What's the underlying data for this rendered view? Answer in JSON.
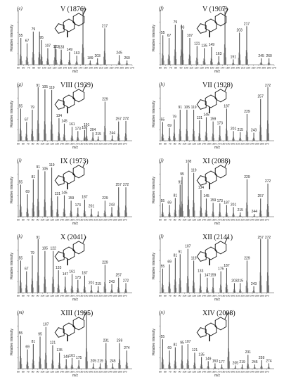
{
  "figure": {
    "axis_labels": {
      "x": "m/z",
      "y": "Relative intensity"
    },
    "x_ticks": [
      "50",
      "60",
      "70",
      "80",
      "90",
      "100",
      "110",
      "120",
      "130",
      "140",
      "150",
      "160",
      "170",
      "180",
      "190",
      "200",
      "210",
      "220",
      "230",
      "240",
      "250",
      "260",
      "270"
    ]
  },
  "chart_data": [
    {
      "panel": "(e)",
      "title": "V (1876)",
      "type": "bar",
      "xlabel": "m/z",
      "ylabel": "Relative intensity",
      "xlim": [
        50,
        270
      ],
      "ylim": [
        0,
        100
      ],
      "peaks": [
        [
          55,
          50
        ],
        [
          67,
          40
        ],
        [
          79,
          62
        ],
        [
          91,
          62
        ],
        [
          95,
          46
        ],
        [
          107,
          31
        ],
        [
          121,
          37
        ],
        [
          123,
          29
        ],
        [
          133,
          28
        ],
        [
          149,
          24
        ],
        [
          163,
          17
        ],
        [
          175,
          100
        ],
        [
          189,
          8
        ],
        [
          203,
          12
        ],
        [
          217,
          68
        ],
        [
          245,
          18
        ],
        [
          260,
          8
        ]
      ],
      "labels": [
        55,
        67,
        79,
        95,
        107,
        123,
        133,
        149,
        163,
        175,
        189,
        203,
        217,
        245,
        260
      ]
    },
    {
      "panel": "(f)",
      "title": "V (1907)",
      "type": "bar",
      "xlabel": "m/z",
      "ylabel": "Relative intensity",
      "xlim": [
        50,
        270
      ],
      "ylim": [
        0,
        100
      ],
      "peaks": [
        [
          55,
          55
        ],
        [
          67,
          50
        ],
        [
          79,
          75
        ],
        [
          91,
          75
        ],
        [
          93,
          65
        ],
        [
          107,
          50
        ],
        [
          121,
          35
        ],
        [
          135,
          31
        ],
        [
          149,
          33
        ],
        [
          163,
          16
        ],
        [
          175,
          100
        ],
        [
          191,
          10
        ],
        [
          203,
          60
        ],
        [
          217,
          72
        ],
        [
          245,
          12
        ],
        [
          260,
          12
        ]
      ],
      "labels": [
        55,
        67,
        79,
        93,
        107,
        121,
        135,
        149,
        163,
        175,
        191,
        203,
        217,
        245,
        260
      ]
    },
    {
      "panel": "(g)",
      "title": "VIII (1939)",
      "type": "bar",
      "xlabel": "m/z",
      "ylabel": "Relative intensity",
      "xlim": [
        50,
        285
      ],
      "ylim": [
        0,
        100
      ],
      "peaks": [
        [
          55,
          60
        ],
        [
          67,
          35
        ],
        [
          79,
          58
        ],
        [
          91,
          100
        ],
        [
          105,
          96
        ],
        [
          119,
          95
        ],
        [
          134,
          42
        ],
        [
          145,
          32
        ],
        [
          161,
          26
        ],
        [
          173,
          18
        ],
        [
          187,
          20
        ],
        [
          191,
          25
        ],
        [
          204,
          16
        ],
        [
          215,
          8
        ],
        [
          229,
          73
        ],
        [
          244,
          10
        ],
        [
          257,
          36
        ],
        [
          272,
          37
        ]
      ],
      "labels": [
        55,
        67,
        79,
        91,
        105,
        119,
        134,
        145,
        161,
        173,
        187,
        191,
        204,
        215,
        229,
        244,
        257,
        272
      ]
    },
    {
      "panel": "(h)",
      "title": "VII (1929)",
      "type": "bar",
      "xlabel": "m/z",
      "ylabel": "Relative intensity",
      "xlim": [
        50,
        285
      ],
      "ylim": [
        0,
        100
      ],
      "peaks": [
        [
          55,
          35
        ],
        [
          69,
          24
        ],
        [
          79,
          40
        ],
        [
          91,
          58
        ],
        [
          105,
          58
        ],
        [
          119,
          58
        ],
        [
          131,
          38
        ],
        [
          145,
          44
        ],
        [
          159,
          36
        ],
        [
          173,
          28
        ],
        [
          187,
          60
        ],
        [
          201,
          18
        ],
        [
          215,
          16
        ],
        [
          229,
          50
        ],
        [
          243,
          15
        ],
        [
          257,
          78
        ],
        [
          272,
          100
        ]
      ],
      "labels": [
        55,
        69,
        79,
        91,
        105,
        119,
        131,
        145,
        159,
        173,
        187,
        201,
        215,
        229,
        243,
        257,
        272
      ]
    },
    {
      "panel": "(i)",
      "title": "IX (1973)",
      "type": "bar",
      "xlabel": "m/z",
      "ylabel": "Relative intensity",
      "xlim": [
        50,
        285
      ],
      "ylim": [
        0,
        100
      ],
      "peaks": [
        [
          55,
          60
        ],
        [
          69,
          42
        ],
        [
          81,
          70
        ],
        [
          91,
          88
        ],
        [
          105,
          85
        ],
        [
          119,
          92
        ],
        [
          131,
          38
        ],
        [
          145,
          40
        ],
        [
          159,
          30
        ],
        [
          173,
          17
        ],
        [
          187,
          32
        ],
        [
          201,
          15
        ],
        [
          215,
          10
        ],
        [
          229,
          30
        ],
        [
          243,
          18
        ],
        [
          257,
          55
        ],
        [
          272,
          55
        ]
      ],
      "labels": [
        55,
        69,
        81,
        91,
        105,
        119,
        131,
        145,
        159,
        173,
        187,
        201,
        229,
        243,
        257,
        272
      ]
    },
    {
      "panel": "(j)",
      "title": "XI (2088)",
      "type": "bar",
      "xlabel": "m/z",
      "ylabel": "Relative intensity",
      "xlim": [
        50,
        285
      ],
      "ylim": [
        0,
        100
      ],
      "peaks": [
        [
          55,
          25
        ],
        [
          69,
          22
        ],
        [
          81,
          35
        ],
        [
          91,
          60
        ],
        [
          95,
          75
        ],
        [
          108,
          100
        ],
        [
          119,
          82
        ],
        [
          134,
          50
        ],
        [
          145,
          34
        ],
        [
          159,
          26
        ],
        [
          173,
          25
        ],
        [
          187,
          22
        ],
        [
          201,
          18
        ],
        [
          215,
          8
        ],
        [
          229,
          70
        ],
        [
          244,
          5
        ],
        [
          257,
          34
        ],
        [
          272,
          62
        ]
      ],
      "labels": [
        55,
        69,
        81,
        91,
        95,
        108,
        119,
        134,
        145,
        159,
        173,
        187,
        201,
        215,
        229,
        244,
        257,
        272
      ]
    },
    {
      "panel": "(k)",
      "title": "X (2041)",
      "type": "bar",
      "xlabel": "m/z",
      "ylabel": "Relative intensity",
      "xlim": [
        50,
        285
      ],
      "ylim": [
        0,
        100
      ],
      "peaks": [
        [
          55,
          60
        ],
        [
          67,
          40
        ],
        [
          79,
          70
        ],
        [
          91,
          100
        ],
        [
          105,
          78
        ],
        [
          122,
          78
        ],
        [
          133,
          42
        ],
        [
          147,
          30
        ],
        [
          161,
          35
        ],
        [
          173,
          24
        ],
        [
          187,
          32
        ],
        [
          201,
          14
        ],
        [
          215,
          12
        ],
        [
          229,
          52
        ],
        [
          243,
          16
        ],
        [
          257,
          28
        ],
        [
          272,
          18
        ]
      ],
      "labels": [
        55,
        67,
        79,
        91,
        105,
        122,
        133,
        147,
        161,
        173,
        187,
        201,
        215,
        229,
        243,
        257,
        272
      ]
    },
    {
      "panel": "(l)",
      "title": "XII (2141)",
      "type": "bar",
      "xlabel": "m/z",
      "ylabel": "Relative intensity",
      "xlim": [
        50,
        285
      ],
      "ylim": [
        0,
        100
      ],
      "peaks": [
        [
          55,
          45
        ],
        [
          69,
          53
        ],
        [
          81,
          65
        ],
        [
          91,
          72
        ],
        [
          107,
          82
        ],
        [
          119,
          60
        ],
        [
          133,
          36
        ],
        [
          147,
          28
        ],
        [
          159,
          28
        ],
        [
          175,
          40
        ],
        [
          187,
          46
        ],
        [
          203,
          18
        ],
        [
          215,
          18
        ],
        [
          229,
          60
        ],
        [
          243,
          12
        ],
        [
          257,
          100
        ],
        [
          272,
          100
        ]
      ],
      "labels": [
        55,
        69,
        81,
        91,
        107,
        119,
        133,
        147,
        159,
        175,
        187,
        203,
        215,
        229,
        243,
        257,
        272
      ]
    },
    {
      "panel": "(m)",
      "title": "XIII (1995)",
      "type": "bar",
      "xlabel": "m/z",
      "ylabel": "Relative intensity",
      "xlim": [
        50,
        285
      ],
      "ylim": [
        0,
        100
      ],
      "peaks": [
        [
          55,
          62
        ],
        [
          69,
          36
        ],
        [
          81,
          46
        ],
        [
          95,
          60
        ],
        [
          107,
          78
        ],
        [
          121,
          44
        ],
        [
          135,
          30
        ],
        [
          149,
          18
        ],
        [
          161,
          20
        ],
        [
          175,
          16
        ],
        [
          191,
          100
        ],
        [
          205,
          10
        ],
        [
          219,
          10
        ],
        [
          231,
          48
        ],
        [
          245,
          10
        ],
        [
          259,
          48
        ],
        [
          274,
          34
        ]
      ],
      "labels": [
        55,
        69,
        81,
        95,
        107,
        121,
        135,
        149,
        161,
        175,
        191,
        205,
        219,
        231,
        245,
        259,
        274
      ]
    },
    {
      "panel": "(n)",
      "title": "XIV (2008)",
      "type": "bar",
      "xlabel": "m/z",
      "ylabel": "Relative intensity",
      "xlim": [
        50,
        285
      ],
      "ylim": [
        0,
        100
      ],
      "peaks": [
        [
          55,
          55
        ],
        [
          69,
          34
        ],
        [
          81,
          40
        ],
        [
          95,
          44
        ],
        [
          107,
          46
        ],
        [
          121,
          30
        ],
        [
          135,
          22
        ],
        [
          149,
          14
        ],
        [
          163,
          10
        ],
        [
          177,
          8
        ],
        [
          191,
          100
        ],
        [
          205,
          6
        ],
        [
          219,
          8
        ],
        [
          231,
          26
        ],
        [
          245,
          8
        ],
        [
          259,
          16
        ],
        [
          274,
          10
        ]
      ],
      "labels": [
        55,
        69,
        81,
        95,
        107,
        121,
        135,
        149,
        163,
        177,
        191,
        205,
        219,
        231,
        245,
        259,
        274
      ]
    }
  ]
}
